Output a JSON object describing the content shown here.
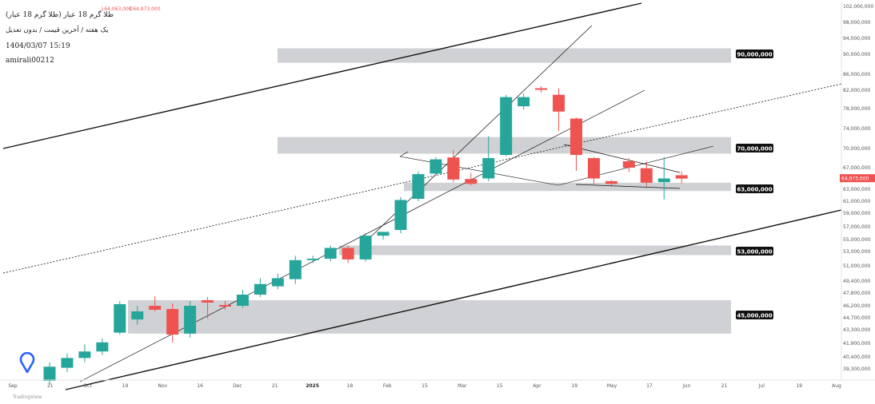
{
  "header": {
    "title": "طلا گرم 18 عیار (طلا گرم 18 عیار)",
    "subtitle": "یک هفته / آخرین قیمت / بدون تعدیل",
    "datetime": "1404/03/07 15:19",
    "author": "amirali00212",
    "ohlc_low": "L64,063,000",
    "ohlc_close": "C64,973,000"
  },
  "watermark": {
    "icon": "tradingview-logo-icon",
    "text": "TradingView"
  },
  "colors": {
    "up": "#26a69a",
    "down": "#ef5350",
    "zone": "#c8c9cc",
    "level_tag": "#111111",
    "price_tag": "#ef5350",
    "trend": "#111111"
  },
  "chart_data": {
    "type": "candlestick",
    "interval": "1W",
    "ylim": [
      38000000,
      103000000
    ],
    "x_tick_labels": [
      "Sep",
      "21",
      "Oct",
      "19",
      "Nov",
      "16",
      "Dec",
      "21",
      "2025",
      "18",
      "Feb",
      "15",
      "Mar",
      "15",
      "Apr",
      "19",
      "May",
      "17",
      "Jun",
      "21",
      "Jul",
      "19",
      "Aug"
    ],
    "x_tick_bold": [
      "2025"
    ],
    "y_tick_labels": [
      "102,000,000",
      "98,000,000",
      "94,000,000",
      "90,000,000",
      "86,000,000",
      "82,000,000",
      "78,000,000",
      "74,000,000",
      "70,000,000",
      "67,000,000",
      "63,000,000",
      "61,000,000",
      "59,000,000",
      "57,000,000",
      "55,000,000",
      "53,000,000",
      "51,000,000",
      "49,400,000",
      "47,800,000",
      "46,200,000",
      "44,700,000",
      "43,300,000",
      "41,900,000",
      "40,400,000",
      "39,300,000"
    ],
    "candles": [
      {
        "o": 38200000,
        "h": 39900000,
        "l": 37800000,
        "c": 39500000
      },
      {
        "o": 39400000,
        "h": 40800000,
        "l": 39000000,
        "c": 40300000
      },
      {
        "o": 40300000,
        "h": 41800000,
        "l": 39900000,
        "c": 41000000
      },
      {
        "o": 41000000,
        "h": 42400000,
        "l": 40600000,
        "c": 42000000
      },
      {
        "o": 43000000,
        "h": 46800000,
        "l": 42800000,
        "c": 46400000
      },
      {
        "o": 44500000,
        "h": 46200000,
        "l": 43900000,
        "c": 45500000
      },
      {
        "o": 46200000,
        "h": 47400000,
        "l": 45500000,
        "c": 45700000
      },
      {
        "o": 45800000,
        "h": 46500000,
        "l": 42000000,
        "c": 42800000
      },
      {
        "o": 42900000,
        "h": 46800000,
        "l": 42500000,
        "c": 46200000
      },
      {
        "o": 46900000,
        "h": 47300000,
        "l": 44600000,
        "c": 46600000
      },
      {
        "o": 46300000,
        "h": 46800000,
        "l": 45700000,
        "c": 46100000
      },
      {
        "o": 46200000,
        "h": 48200000,
        "l": 45900000,
        "c": 47600000
      },
      {
        "o": 47600000,
        "h": 49700000,
        "l": 47300000,
        "c": 49000000
      },
      {
        "o": 48700000,
        "h": 50200000,
        "l": 48300000,
        "c": 49700000
      },
      {
        "o": 49600000,
        "h": 52400000,
        "l": 49000000,
        "c": 51800000
      },
      {
        "o": 51800000,
        "h": 52400000,
        "l": 51400000,
        "c": 52000000
      },
      {
        "o": 52000000,
        "h": 54000000,
        "l": 51600000,
        "c": 53600000
      },
      {
        "o": 53600000,
        "h": 54000000,
        "l": 51400000,
        "c": 51900000
      },
      {
        "o": 51900000,
        "h": 56000000,
        "l": 51600000,
        "c": 55600000
      },
      {
        "o": 55600000,
        "h": 56200000,
        "l": 55000000,
        "c": 56200000
      },
      {
        "o": 56500000,
        "h": 61700000,
        "l": 56000000,
        "c": 61200000
      },
      {
        "o": 61400000,
        "h": 66300000,
        "l": 61000000,
        "c": 65800000
      },
      {
        "o": 65900000,
        "h": 68600000,
        "l": 65600000,
        "c": 68300000
      },
      {
        "o": 68600000,
        "h": 69800000,
        "l": 64300000,
        "c": 64800000
      },
      {
        "o": 64900000,
        "h": 66000000,
        "l": 63700000,
        "c": 64000000
      },
      {
        "o": 65000000,
        "h": 72500000,
        "l": 64500000,
        "c": 68500000
      },
      {
        "o": 69000000,
        "h": 81000000,
        "l": 68800000,
        "c": 80500000
      },
      {
        "o": 78500000,
        "h": 81300000,
        "l": 77800000,
        "c": 80500000
      },
      {
        "o": 82500000,
        "h": 83000000,
        "l": 81500000,
        "c": 82100000
      },
      {
        "o": 81000000,
        "h": 82500000,
        "l": 73500000,
        "c": 77400000
      },
      {
        "o": 76000000,
        "h": 76200000,
        "l": 66400000,
        "c": 69000000
      },
      {
        "o": 68500000,
        "h": 68700000,
        "l": 64000000,
        "c": 65000000
      },
      {
        "o": 64500000,
        "h": 64700000,
        "l": 63400000,
        "c": 64000000
      },
      {
        "o": 68000000,
        "h": 68500000,
        "l": 66200000,
        "c": 67000000
      },
      {
        "o": 66900000,
        "h": 67900000,
        "l": 63500000,
        "c": 64200000
      },
      {
        "o": 64300000,
        "h": 68700000,
        "l": 61300000,
        "c": 65000000
      },
      {
        "o": 65600000,
        "h": 66300000,
        "l": 64100000,
        "c": 64973000
      }
    ],
    "zones": [
      {
        "label": "90,000,000",
        "top": 91500000,
        "bottom": 88300000
      },
      {
        "label": "70,000,000",
        "top": 72300000,
        "bottom": 69200000
      },
      {
        "label": "63,000,000",
        "top": 64200000,
        "bottom": 62700000
      },
      {
        "label": "53,000,000",
        "top": 54000000,
        "bottom": 52500000
      },
      {
        "label": "45,000,000",
        "top": 46900000,
        "bottom": 42900000
      }
    ],
    "current_price": "64,973,000",
    "current_price_value": 64973000
  }
}
